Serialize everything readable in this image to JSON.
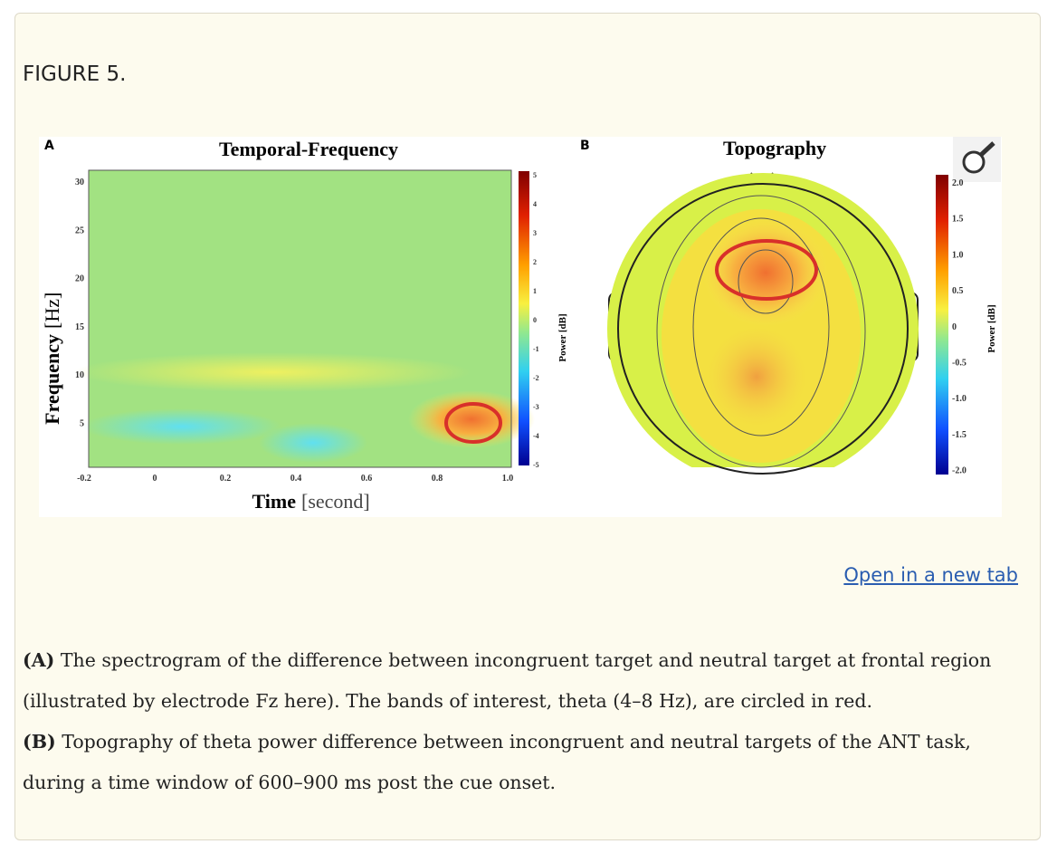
{
  "figure_label": "FIGURE 5.",
  "figure": {
    "panel_a": {
      "label": "A",
      "title": "Temporal-Frequency",
      "x_label_main": "Time",
      "x_label_unit": "[second]",
      "y_label_main": "Frequency",
      "y_label_unit": "[Hz]",
      "xticks": [
        "-0.2",
        "0",
        "0.2",
        "0.4",
        "0.6",
        "0.8",
        "1.0"
      ],
      "yticks": [
        "30",
        "25",
        "20",
        "15",
        "10",
        "5"
      ],
      "colorbar_ticks": [
        "5",
        "4",
        "3",
        "2",
        "1",
        "0",
        "-1",
        "-2",
        "-3",
        "-4",
        "-5"
      ],
      "colorbar_label": "Power [dB]"
    },
    "panel_b": {
      "label": "B",
      "title": "Topography",
      "colorbar_ticks": [
        "2.0",
        "1.5",
        "1.0",
        "0.5",
        "0",
        "-0.5",
        "-1.0",
        "-1.5",
        "-2.0"
      ],
      "colorbar_label": "Power [dB]"
    }
  },
  "link": "Open in a new tab",
  "caption": [
    {
      "bold": "(A)",
      "text": " The spectrogram of the difference between incongruent target and neutral target at frontal region (illustrated by electrode Fz here). The bands of interest, theta (4–8 Hz), are circled in red."
    },
    {
      "bold": "(B)",
      "text": " Topography of theta power difference between incongruent and neutral targets of the ANT task, during a time window of 600–900 ms post the cue onset."
    }
  ]
}
